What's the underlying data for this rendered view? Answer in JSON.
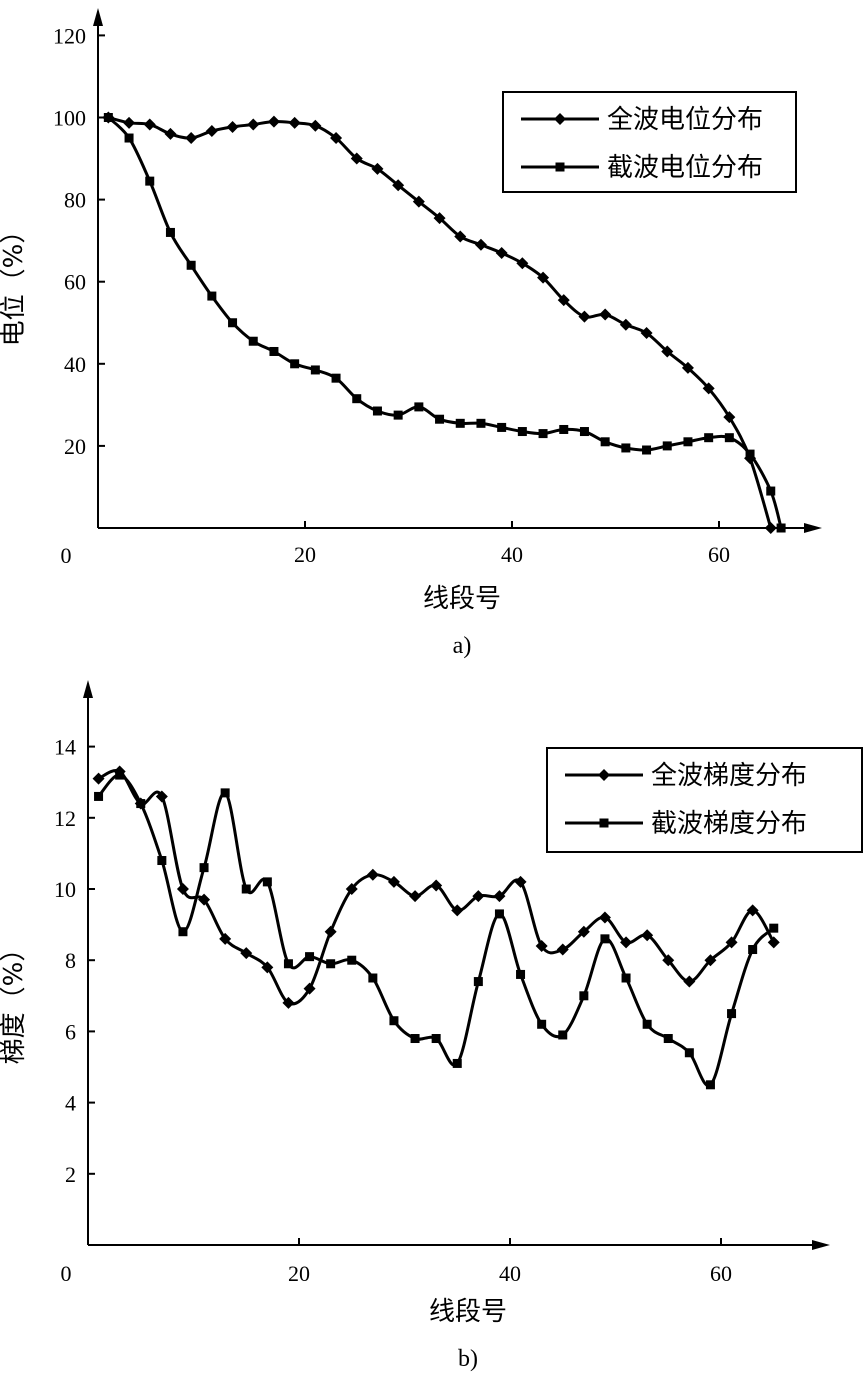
{
  "chart_data": [
    {
      "type": "line",
      "caption": "a)",
      "xlabel": "线段号",
      "ylabel": "电位（%）",
      "xlim": [
        0,
        70
      ],
      "ylim": [
        0,
        120
      ],
      "xticks": [
        20,
        40,
        60
      ],
      "yticks": [
        20,
        40,
        60,
        80,
        100,
        120
      ],
      "origin_label": "0",
      "legend_position": "top-right",
      "grid": false,
      "series": [
        {
          "name": "全波电位分布",
          "marker": "diamond",
          "x": [
            1,
            3,
            5,
            7,
            9,
            11,
            13,
            15,
            17,
            19,
            21,
            23,
            25,
            27,
            29,
            31,
            33,
            35,
            37,
            39,
            41,
            43,
            45,
            47,
            49,
            51,
            53,
            55,
            57,
            59,
            61,
            63,
            65
          ],
          "y": [
            100,
            98.7,
            98.3,
            96,
            95,
            96.7,
            97.7,
            98.3,
            99,
            98.7,
            98,
            95,
            90,
            87.5,
            83.5,
            79.5,
            75.5,
            71,
            69,
            67,
            64.5,
            61,
            55.5,
            51.5,
            52,
            49.5,
            47.5,
            43,
            39,
            34,
            27,
            17,
            0
          ]
        },
        {
          "name": "截波电位分布",
          "marker": "square",
          "x": [
            1,
            3,
            5,
            7,
            9,
            11,
            13,
            15,
            17,
            19,
            21,
            23,
            25,
            27,
            29,
            31,
            33,
            35,
            37,
            39,
            41,
            43,
            45,
            47,
            49,
            51,
            53,
            55,
            57,
            59,
            61,
            63,
            65,
            66
          ],
          "y": [
            100,
            95,
            84.5,
            72,
            64,
            56.5,
            50,
            45.5,
            43,
            40,
            38.5,
            36.5,
            31.5,
            28.5,
            27.5,
            29.5,
            26.5,
            25.5,
            25.5,
            24.5,
            23.5,
            23,
            24,
            23.5,
            21,
            19.5,
            19,
            20,
            21,
            22,
            22,
            18,
            9,
            0
          ]
        }
      ]
    },
    {
      "type": "line",
      "caption": "b)",
      "xlabel": "线段号",
      "ylabel": "梯度（%）",
      "xlim": [
        0,
        70
      ],
      "ylim": [
        0,
        15.5
      ],
      "xticks": [
        20,
        40,
        60
      ],
      "yticks": [
        2,
        4,
        6,
        8,
        10,
        12,
        14
      ],
      "origin_label": "0",
      "legend_position": "top-right",
      "grid": false,
      "series": [
        {
          "name": "全波梯度分布",
          "marker": "diamond",
          "x": [
            1,
            3,
            5,
            7,
            9,
            11,
            13,
            15,
            17,
            19,
            21,
            23,
            25,
            27,
            29,
            31,
            33,
            35,
            37,
            39,
            41,
            43,
            45,
            47,
            49,
            51,
            53,
            55,
            57,
            59,
            61,
            63,
            65
          ],
          "y": [
            13.1,
            13.3,
            12.4,
            12.6,
            10,
            9.7,
            8.6,
            8.2,
            7.8,
            6.8,
            7.2,
            8.8,
            10,
            10.4,
            10.2,
            9.8,
            10.1,
            9.4,
            9.8,
            9.8,
            10.2,
            8.4,
            8.3,
            8.8,
            9.2,
            8.5,
            8.7,
            8,
            7.4,
            8,
            8.5,
            9.4,
            8.5
          ]
        },
        {
          "name": "截波梯度分布",
          "marker": "square",
          "x": [
            1,
            3,
            5,
            7,
            9,
            11,
            13,
            15,
            17,
            19,
            21,
            23,
            25,
            27,
            29,
            31,
            33,
            35,
            37,
            39,
            41,
            43,
            45,
            47,
            49,
            51,
            53,
            55,
            57,
            59,
            61,
            63,
            65
          ],
          "y": [
            12.6,
            13.2,
            12.4,
            10.8,
            8.8,
            10.6,
            12.7,
            10,
            10.2,
            7.9,
            8.1,
            7.9,
            8,
            7.5,
            6.3,
            5.8,
            5.8,
            5.1,
            7.4,
            9.3,
            7.6,
            6.2,
            5.9,
            7,
            8.6,
            7.5,
            6.2,
            5.8,
            5.4,
            4.5,
            6.5,
            8.3,
            8.9
          ]
        }
      ]
    }
  ]
}
